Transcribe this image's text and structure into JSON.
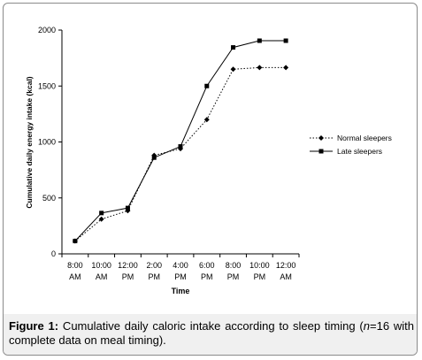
{
  "chart_data": {
    "type": "line",
    "xlabel": "Time",
    "ylabel": "Cumulative daily energy intake (kcal)",
    "ylim": [
      0,
      2000
    ],
    "yticks": [
      0,
      500,
      1000,
      1500,
      2000
    ],
    "categories": [
      [
        "8:00",
        "AM"
      ],
      [
        "10:00",
        "AM"
      ],
      [
        "12:00",
        "PM"
      ],
      [
        "2:00",
        "PM"
      ],
      [
        "4:00",
        "PM"
      ],
      [
        "6:00",
        "PM"
      ],
      [
        "8:00",
        "PM"
      ],
      [
        "10:00",
        "PM"
      ],
      [
        "12:00",
        "AM"
      ]
    ],
    "series": [
      {
        "name": "Normal sleepers",
        "marker": "diamond",
        "line": "dotted",
        "values": [
          115,
          310,
          385,
          880,
          940,
          1200,
          1650,
          1665,
          1665
        ]
      },
      {
        "name": "Late sleepers",
        "marker": "square",
        "line": "solid",
        "values": [
          115,
          365,
          410,
          860,
          960,
          1500,
          1845,
          1905,
          1905
        ]
      }
    ],
    "legend_position": "right"
  },
  "caption": {
    "label": "Figure 1:",
    "text_before": " Cumulative daily caloric intake according to sleep timing (",
    "italic": "n",
    "text_after": "=16 with complete data on meal timing)."
  }
}
